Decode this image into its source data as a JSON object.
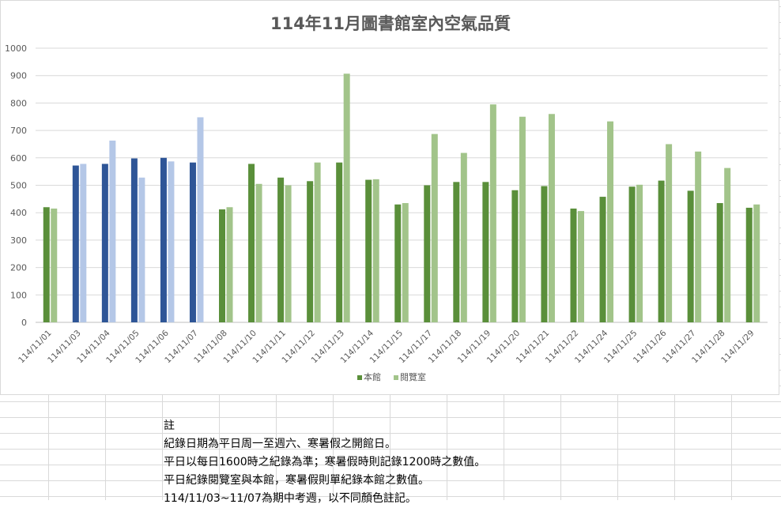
{
  "chart_data": {
    "type": "bar",
    "title": "114年11月圖書館室內空氣品質",
    "categories": [
      "114/11/01",
      "114/11/03",
      "114/11/04",
      "114/11/05",
      "114/11/06",
      "114/11/07",
      "114/11/08",
      "114/11/10",
      "114/11/11",
      "114/11/12",
      "114/11/13",
      "114/11/14",
      "114/11/15",
      "114/11/17",
      "114/11/18",
      "114/11/19",
      "114/11/20",
      "114/11/21",
      "114/11/22",
      "114/11/24",
      "114/11/25",
      "114/11/26",
      "114/11/27",
      "114/11/28",
      "114/11/29"
    ],
    "series": [
      {
        "name": "本館",
        "color": "#5a8f3a",
        "values": [
          420,
          572,
          578,
          598,
          600,
          583,
          412,
          578,
          528,
          515,
          583,
          520,
          430,
          500,
          512,
          512,
          482,
          497,
          415,
          458,
          495,
          517,
          480,
          435,
          418
        ]
      },
      {
        "name": "閱覽室",
        "color": "#a2c48a",
        "values": [
          415,
          578,
          663,
          528,
          587,
          748,
          420,
          505,
          500,
          583,
          907,
          522,
          435,
          687,
          618,
          795,
          750,
          760,
          406,
          733,
          502,
          650,
          623,
          563,
          430
        ]
      }
    ],
    "highlight": {
      "categories": [
        "114/11/03",
        "114/11/04",
        "114/11/05",
        "114/11/06",
        "114/11/07"
      ],
      "colors": {
        "本館": "#2e5597",
        "閱覽室": "#b4c7e7"
      }
    },
    "ylim": [
      0,
      1000
    ],
    "yticks": [
      0,
      100,
      200,
      300,
      400,
      500,
      600,
      700,
      800,
      900,
      1000
    ],
    "xlabel": "",
    "ylabel": "",
    "grid": true,
    "legend": "bottom"
  },
  "notes": {
    "heading": "註",
    "lines": [
      "紀錄日期為平日周一至週六、寒暑假之開館日。",
      "平日以每日1600時之紀錄為準；寒暑假時則記錄1200時之數值。",
      "平日紀錄閱覽室與本館，寒暑假則單紀錄本館之數值。",
      "114/11/03~11/07為期中考週，以不同顏色註記。"
    ]
  }
}
